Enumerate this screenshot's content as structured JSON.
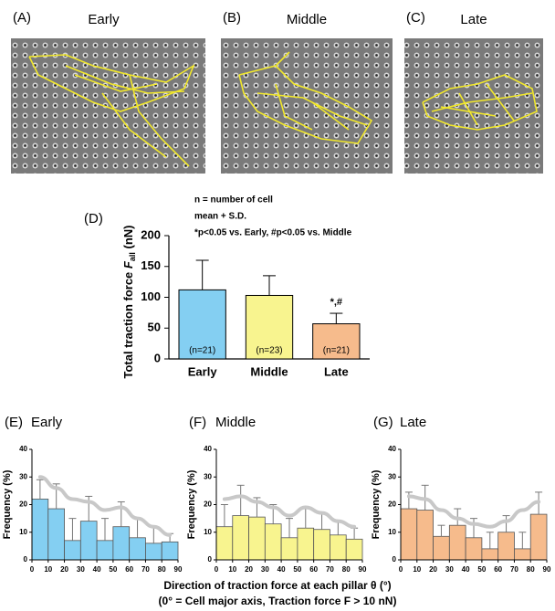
{
  "images": [
    {
      "panel": "(A)",
      "title": "Early"
    },
    {
      "panel": "(B)",
      "title": "Middle"
    },
    {
      "panel": "(C)",
      "title": "Late"
    }
  ],
  "figure_xlabel": [
    "Direction of traction force at each pillar θ (°)",
    "(0° = Cell major axis,  Traction force F > 10 nN)"
  ],
  "chart_data": [
    {
      "type": "bar",
      "panel": "(D)",
      "ylabel": [
        "Total traction force ",
        "F",
        "all",
        " (nN)"
      ],
      "annotations": [
        "n = number of cell",
        "mean + S.D.",
        "*p<0.05 vs. Early,  #p<0.05 vs. Middle"
      ],
      "categories": [
        "Early",
        "Middle",
        "Late"
      ],
      "values": [
        112,
        103,
        57
      ],
      "errors": [
        48,
        32,
        17
      ],
      "colors": [
        "#84cff2",
        "#f8f48f",
        "#f6bb8c"
      ],
      "n_labels": [
        "(n=21)",
        "(n=23)",
        "(n=21)"
      ],
      "significance_labels": [
        null,
        null,
        "*,#"
      ],
      "ylim": [
        0,
        200
      ],
      "yticks": [
        0,
        50,
        100,
        150,
        200
      ]
    },
    {
      "type": "histogram",
      "panel": "(E)",
      "title": "Early",
      "ylabel": "Frequency (%)",
      "bins": [
        0,
        10,
        20,
        30,
        40,
        50,
        60,
        70,
        80,
        90
      ],
      "values": [
        22,
        18.5,
        7,
        14,
        7,
        12,
        8,
        6,
        6.5
      ],
      "errors": [
        7,
        9,
        8,
        9,
        8,
        9,
        7,
        6,
        3
      ],
      "color": "#84cff2",
      "trend": {
        "color": "#c8c8c8",
        "x": [
          5,
          15,
          25,
          35,
          45,
          55,
          65,
          75,
          85
        ],
        "y": [
          30,
          26,
          22,
          21,
          18,
          19,
          15,
          12,
          9
        ]
      },
      "xlim": [
        0,
        90
      ],
      "xticks": [
        0,
        10,
        20,
        30,
        40,
        50,
        60,
        70,
        80,
        90
      ],
      "ylim": [
        0,
        40
      ],
      "yticks": [
        0,
        10,
        20,
        30,
        40
      ]
    },
    {
      "type": "histogram",
      "panel": "(F)",
      "title": "Middle",
      "ylabel": "Frequency (%)",
      "bins": [
        0,
        10,
        20,
        30,
        40,
        50,
        60,
        70,
        80,
        90
      ],
      "values": [
        12,
        16,
        15.5,
        13,
        8,
        11.5,
        11,
        9,
        7.5
      ],
      "errors": [
        8,
        11,
        7,
        7,
        7,
        7,
        6,
        5,
        4
      ],
      "color": "#f8f48f",
      "trend": {
        "color": "#c8c8c8",
        "x": [
          5,
          15,
          25,
          35,
          45,
          55,
          65,
          75,
          85
        ],
        "y": [
          22,
          23,
          21,
          19,
          16,
          19,
          17,
          14,
          12
        ]
      },
      "xlim": [
        0,
        90
      ],
      "xticks": [
        0,
        10,
        20,
        30,
        40,
        50,
        60,
        70,
        80,
        90
      ],
      "ylim": [
        0,
        40
      ],
      "yticks": [
        0,
        10,
        20,
        30,
        40
      ]
    },
    {
      "type": "histogram",
      "panel": "(G)",
      "title": "Late",
      "ylabel": "Frequency (%)",
      "bins": [
        0,
        10,
        20,
        30,
        40,
        50,
        60,
        70,
        80,
        90
      ],
      "values": [
        18.5,
        18,
        8.5,
        12.5,
        8,
        4,
        10,
        4,
        16.5
      ],
      "errors": [
        6,
        9,
        4,
        6,
        7,
        6,
        6,
        6,
        8
      ],
      "color": "#f6bb8c",
      "trend": {
        "color": "#c8c8c8",
        "x": [
          5,
          15,
          25,
          35,
          45,
          55,
          65,
          75,
          85
        ],
        "y": [
          23,
          22,
          18,
          15,
          13,
          12,
          14,
          18,
          21
        ]
      },
      "xlim": [
        0,
        90
      ],
      "xticks": [
        0,
        10,
        20,
        30,
        40,
        50,
        60,
        70,
        80,
        90
      ],
      "ylim": [
        0,
        40
      ],
      "yticks": [
        0,
        10,
        20,
        30,
        40
      ]
    }
  ]
}
